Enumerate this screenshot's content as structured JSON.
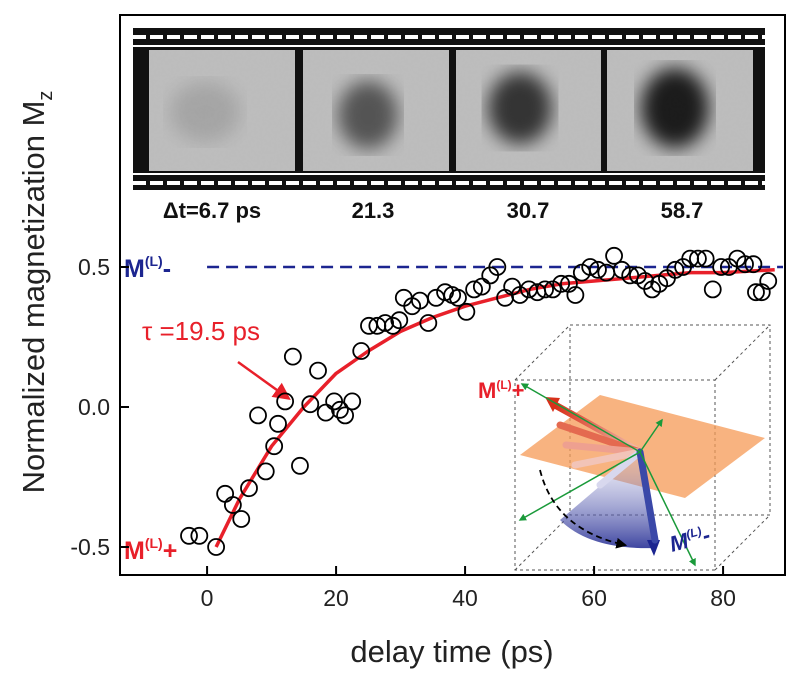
{
  "chart_data": {
    "type": "scatter",
    "xlabel": "delay time (ps)",
    "ylabel": "Normalized magnetization M",
    "ylabel_sub": "z",
    "xlim": [
      -13.5,
      89.6
    ],
    "ylim": [
      -0.6,
      1.4
    ],
    "xticks": [
      0,
      20,
      40,
      60,
      80
    ],
    "yticks": [
      -0.5,
      {
        "value": 0,
        "label": "0.0"
      },
      0.5
    ],
    "grid": false,
    "marker_color": "#000000",
    "scatter": {
      "x": [
        -2.8,
        -1.2,
        1.4,
        2.8,
        4.0,
        5.3,
        6.5,
        7.9,
        9.1,
        10.4,
        11.0,
        12.1,
        13.3,
        14.4,
        16.0,
        17.2,
        18.4,
        19.7,
        20.6,
        21.4,
        22.5,
        23.9,
        25.1,
        26.4,
        27.6,
        28.8,
        29.8,
        30.5,
        31.8,
        33.0,
        34.3,
        35.5,
        36.9,
        38.0,
        38.9,
        40.2,
        41.4,
        42.6,
        43.9,
        45.0,
        46.2,
        47.3,
        48.5,
        49.9,
        51.2,
        52.4,
        53.6,
        54.9,
        56.1,
        57.1,
        58.1,
        59.4,
        60.6,
        61.9,
        63.1,
        64.3,
        65.6,
        66.8,
        67.9,
        69.0,
        70.1,
        71.3,
        72.6,
        73.8,
        74.9,
        76.1,
        77.3,
        78.4,
        79.7,
        80.9,
        82.2,
        83.4,
        84.7,
        85.1,
        86.0,
        87.0
      ],
      "values": [
        -0.46,
        -0.46,
        -0.5,
        -0.31,
        -0.35,
        -0.4,
        -0.29,
        -0.03,
        -0.23,
        -0.14,
        -0.06,
        0.02,
        0.18,
        -0.21,
        0.01,
        0.13,
        -0.02,
        0.02,
        -0.01,
        -0.03,
        0.02,
        0.2,
        0.29,
        0.29,
        0.3,
        0.29,
        0.31,
        0.39,
        0.36,
        0.38,
        0.3,
        0.39,
        0.41,
        0.4,
        0.39,
        0.34,
        0.42,
        0.43,
        0.47,
        0.5,
        0.39,
        0.43,
        0.4,
        0.42,
        0.41,
        0.42,
        0.42,
        0.44,
        0.44,
        0.4,
        0.48,
        0.5,
        0.49,
        0.48,
        0.54,
        0.49,
        0.47,
        0.47,
        0.45,
        0.42,
        0.44,
        0.46,
        0.49,
        0.5,
        0.53,
        0.53,
        0.53,
        0.42,
        0.5,
        0.5,
        0.53,
        0.51,
        0.51,
        0.41,
        0.41,
        0.45
      ]
    },
    "fit": {
      "color": "#e8202a",
      "x": [
        1.4,
        5,
        10,
        15,
        20,
        25,
        30,
        35,
        40,
        45,
        50,
        55,
        60,
        65,
        70,
        75,
        80,
        88
      ],
      "values": [
        -0.5,
        -0.33,
        -0.14,
        0.0,
        0.12,
        0.2,
        0.27,
        0.32,
        0.36,
        0.39,
        0.42,
        0.44,
        0.45,
        0.46,
        0.47,
        0.48,
        0.48,
        0.49
      ]
    },
    "reference_line": {
      "value": 0.5,
      "color": "#1c2590"
    },
    "annotations": {
      "tau": "τ =19.5 ps",
      "m_minus": {
        "main": "M",
        "sup": "(L)",
        "sign": "-"
      },
      "m_plus": {
        "main": "M",
        "sup": "(L)",
        "sign": "+"
      },
      "inset_plus": {
        "main": "M",
        "sup": "(L)",
        "sign": "+"
      },
      "inset_minus": {
        "main": "M",
        "sup": "(L)",
        "sign": "-"
      }
    },
    "film_labels": [
      "Δt=6.7 ps",
      "21.3",
      "30.7",
      "58.7"
    ]
  }
}
